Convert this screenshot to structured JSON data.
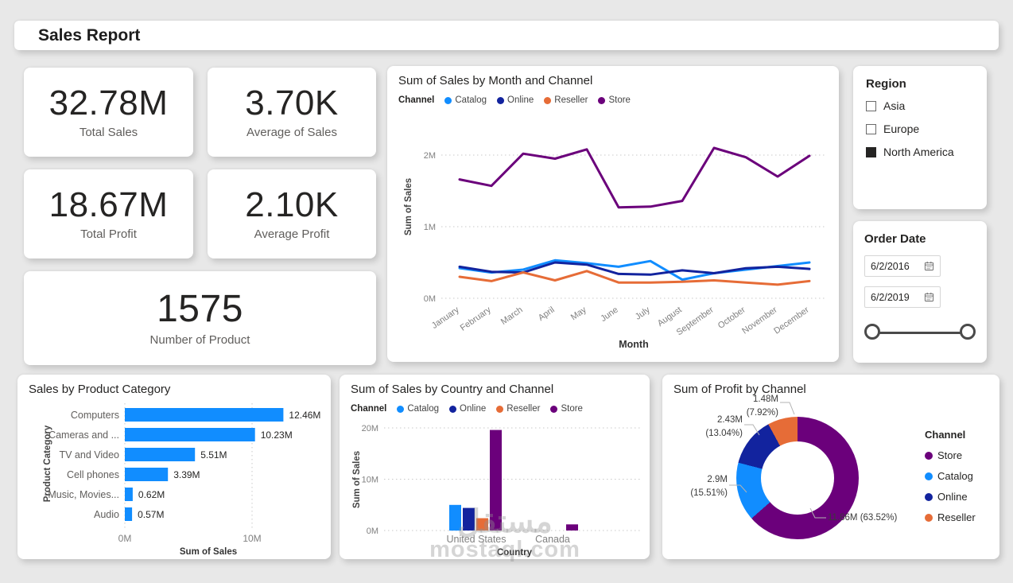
{
  "page": {
    "title": "Sales Report",
    "watermark_line1": "مستقل",
    "watermark_line2": "mostaql.com"
  },
  "colors": {
    "catalog": "#118DFF",
    "online": "#12239E",
    "reseller": "#E66C37",
    "store": "#6B007B",
    "bar_blue": "#118DFF",
    "text_dark": "#252423",
    "text_gray": "#605E5C"
  },
  "kpis": [
    {
      "value": "32.78M",
      "label": "Total Sales"
    },
    {
      "value": "3.70K",
      "label": "Average of Sales"
    },
    {
      "value": "18.67M",
      "label": "Total Profit"
    },
    {
      "value": "2.10K",
      "label": "Average Profit"
    },
    {
      "value": "1575",
      "label": "Number of Product"
    }
  ],
  "region_filter": {
    "title": "Region",
    "options": [
      {
        "label": "Asia",
        "checked": false
      },
      {
        "label": "Europe",
        "checked": false
      },
      {
        "label": "North America",
        "checked": true
      }
    ]
  },
  "date_filter": {
    "title": "Order Date",
    "start": "6/2/2016",
    "end": "6/2/2019"
  },
  "chart_data": [
    {
      "type": "line",
      "title": "Sum of Sales by Month and Channel",
      "legend_title": "Channel",
      "legend_position": "top",
      "x": [
        "January",
        "February",
        "March",
        "April",
        "May",
        "June",
        "July",
        "August",
        "September",
        "October",
        "November",
        "December"
      ],
      "series": [
        {
          "name": "Catalog",
          "color": "#118DFF",
          "values": [
            0.42,
            0.36,
            0.4,
            0.53,
            0.49,
            0.44,
            0.52,
            0.26,
            0.35,
            0.4,
            0.45,
            0.5
          ]
        },
        {
          "name": "Online",
          "color": "#12239E",
          "values": [
            0.44,
            0.37,
            0.36,
            0.5,
            0.47,
            0.34,
            0.33,
            0.39,
            0.35,
            0.42,
            0.44,
            0.41
          ]
        },
        {
          "name": "Reseller",
          "color": "#E66C37",
          "values": [
            0.3,
            0.24,
            0.36,
            0.25,
            0.38,
            0.22,
            0.22,
            0.23,
            0.25,
            0.22,
            0.19,
            0.24
          ]
        },
        {
          "name": "Store",
          "color": "#6B007B",
          "values": [
            1.66,
            1.57,
            2.02,
            1.95,
            2.08,
            1.27,
            1.28,
            1.36,
            2.1,
            1.97,
            1.7,
            1.99
          ]
        }
      ],
      "xlabel": "Month",
      "ylabel": "Sum of Sales",
      "ylim": [
        0,
        2.4
      ],
      "yticks": [
        {
          "label": "0M",
          "value": 0
        },
        {
          "label": "1M",
          "value": 1
        },
        {
          "label": "2M",
          "value": 2
        }
      ],
      "grid": "dotted-horizontal"
    },
    {
      "type": "bar",
      "title": "Sales by Product Category",
      "categories": [
        "Computers",
        "Cameras and ...",
        "TV and Video",
        "Cell phones",
        "Music, Movies...",
        "Audio"
      ],
      "values": [
        12.46,
        10.23,
        5.51,
        3.39,
        0.62,
        0.57
      ],
      "value_labels": [
        "12.46M",
        "10.23M",
        "5.51M",
        "3.39M",
        "0.62M",
        "0.57M"
      ],
      "bar_color": "#118DFF",
      "xlabel": "Sum of Sales",
      "ylabel": "Product Category",
      "xlim": [
        0,
        13
      ],
      "xticks": [
        {
          "label": "0M",
          "value": 0
        },
        {
          "label": "10M",
          "value": 10
        }
      ],
      "grid": "dotted-vertical"
    },
    {
      "type": "column",
      "title": "Sum of Sales by Country and Channel",
      "legend_title": "Channel",
      "legend_position": "top",
      "categories": [
        "United States",
        "Canada"
      ],
      "series": [
        {
          "name": "Catalog",
          "color": "#118DFF",
          "values": [
            5.0,
            0
          ]
        },
        {
          "name": "Online",
          "color": "#12239E",
          "values": [
            4.4,
            0
          ]
        },
        {
          "name": "Reseller",
          "color": "#E66C37",
          "values": [
            2.4,
            0
          ]
        },
        {
          "name": "Store",
          "color": "#6B007B",
          "values": [
            19.6,
            1.2
          ]
        }
      ],
      "xlabel": "Country",
      "ylabel": "Sum of Sales",
      "ylim": [
        0,
        20
      ],
      "yticks": [
        {
          "label": "0M",
          "value": 0
        },
        {
          "label": "10M",
          "value": 10
        },
        {
          "label": "20M",
          "value": 20
        }
      ],
      "grid": "dotted-horizontal"
    },
    {
      "type": "pie",
      "title": "Sum of Profit by Channel",
      "legend_title": "Channel",
      "legend_position": "right",
      "slices": [
        {
          "name": "Store",
          "color": "#6B007B",
          "value": 11.86,
          "pct": 63.52,
          "label_lines": [
            "11.86M (63.52%)"
          ]
        },
        {
          "name": "Catalog",
          "color": "#118DFF",
          "value": 2.9,
          "pct": 15.51,
          "label_lines": [
            "2.9M",
            "(15.51%)"
          ]
        },
        {
          "name": "Online",
          "color": "#12239E",
          "value": 2.43,
          "pct": 13.04,
          "label_lines": [
            "2.43M",
            "(13.04%)"
          ]
        },
        {
          "name": "Reseller",
          "color": "#E66C37",
          "value": 1.48,
          "pct": 7.92,
          "label_lines": [
            "1.48M",
            "(7.92%)"
          ]
        }
      ]
    }
  ]
}
